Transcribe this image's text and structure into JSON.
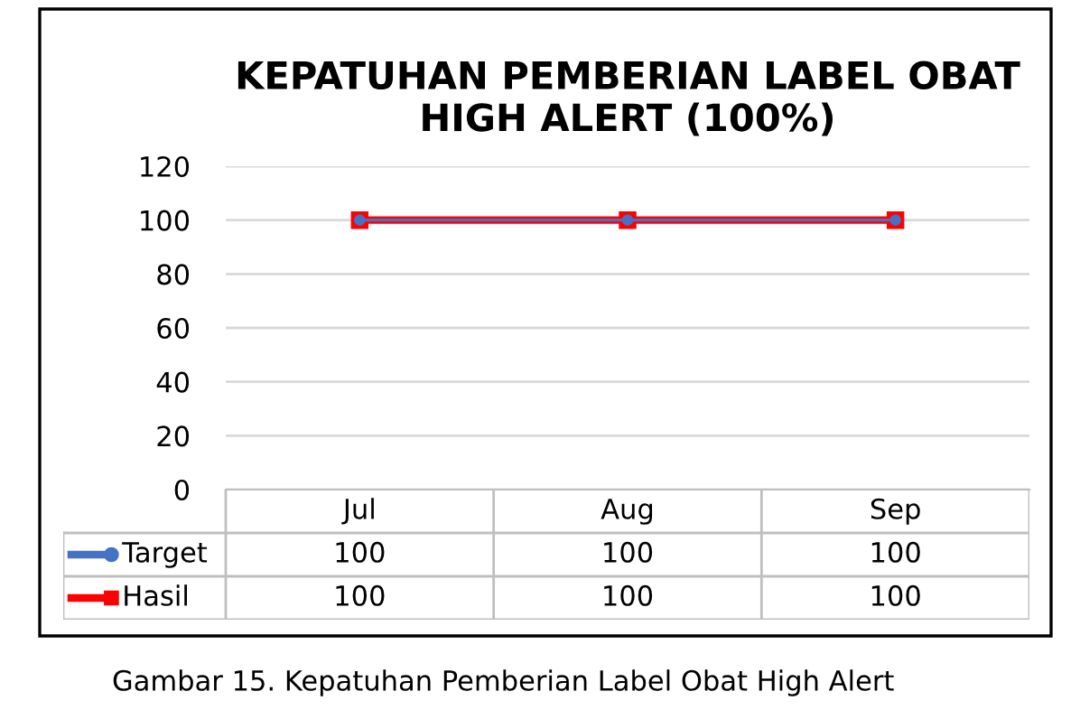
{
  "chart_data": {
    "type": "line",
    "title": "KEPATUHAN PEMBERIAN LABEL OBAT\nHIGH ALERT (100%)",
    "categories": [
      "Jul",
      "Aug",
      "Sep"
    ],
    "series": [
      {
        "name": "Target",
        "color": "#4472c4",
        "values": [
          100,
          100,
          100
        ],
        "marker": "circle"
      },
      {
        "name": "Hasil",
        "color": "#ff0000",
        "values": [
          100,
          100,
          100
        ],
        "marker": "square"
      }
    ],
    "ylim": [
      0,
      120
    ],
    "yticks": [
      0,
      20,
      40,
      60,
      80,
      100,
      120
    ],
    "grid": "y",
    "legend": "bottom",
    "data_labels": true,
    "line_style": "solid",
    "annotations": [
      "Gambar 15. Kepatuhan Pemberian Label Obat High Alert"
    ]
  }
}
